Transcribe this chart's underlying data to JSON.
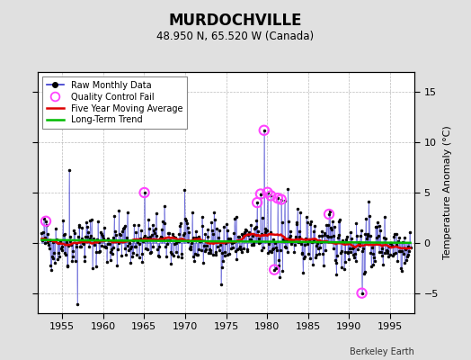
{
  "title": "MURDOCHVILLE",
  "subtitle": "48.950 N, 65.520 W (Canada)",
  "ylabel": "Temperature Anomaly (°C)",
  "credit": "Berkeley Earth",
  "xlim": [
    1952,
    1998
  ],
  "ylim": [
    -7,
    17
  ],
  "yticks": [
    -5,
    0,
    5,
    10,
    15
  ],
  "xticks": [
    1955,
    1960,
    1965,
    1970,
    1975,
    1980,
    1985,
    1990,
    1995
  ],
  "bg_color": "#e0e0e0",
  "plot_bg_color": "#ffffff",
  "raw_line_color": "#3333cc",
  "raw_marker_color": "#000000",
  "qc_fail_color": "#ff44ff",
  "moving_avg_color": "#dd0000",
  "trend_color": "#00bb00",
  "seed": 42,
  "start_year": 1952.5,
  "end_year": 1997.5,
  "n_months": 540,
  "moving_avg_window": 60,
  "legend_loc": "upper left"
}
